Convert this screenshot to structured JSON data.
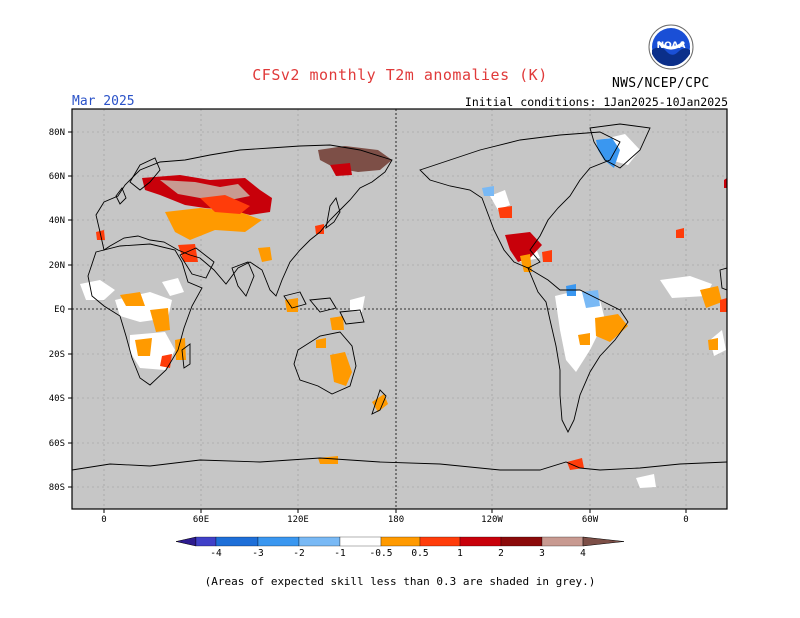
{
  "title": "CFSv2 monthly T2m anomalies (K)",
  "forecast_month": "Mar 2025",
  "initial_conditions": "Initial conditions: 1Jan2025-10Jan2025",
  "agency": "NWS/NCEP/CPC",
  "logo_text": "NOAA",
  "footnote": "(Areas of expected skill less than 0.3 are shaded in grey.)",
  "latitude_labels": [
    "80N",
    "60N",
    "40N",
    "20N",
    "EQ",
    "20S",
    "40S",
    "60S",
    "80S"
  ],
  "longitude_labels": [
    "0",
    "60E",
    "120E",
    "180",
    "120W",
    "60W",
    "0"
  ],
  "colorbar": {
    "labels": [
      "-4",
      "-3",
      "-2",
      "-1",
      "-0.5",
      "0.5",
      "1",
      "2",
      "3",
      "4"
    ],
    "colors": [
      "#2d1b8f",
      "#4040c8",
      "#1e6fd8",
      "#3a97f0",
      "#79b9f5",
      "#ffffff",
      "#ff9a00",
      "#ff3c0a",
      "#c8000a",
      "#8b0a0a",
      "#c89a91",
      "#7d4f47"
    ]
  },
  "colors": {
    "skill_grey": "#c6c6c6",
    "white_near_normal": "#ffffff",
    "title_red": "#e03a3a",
    "month_blue": "#2a52c8"
  }
}
